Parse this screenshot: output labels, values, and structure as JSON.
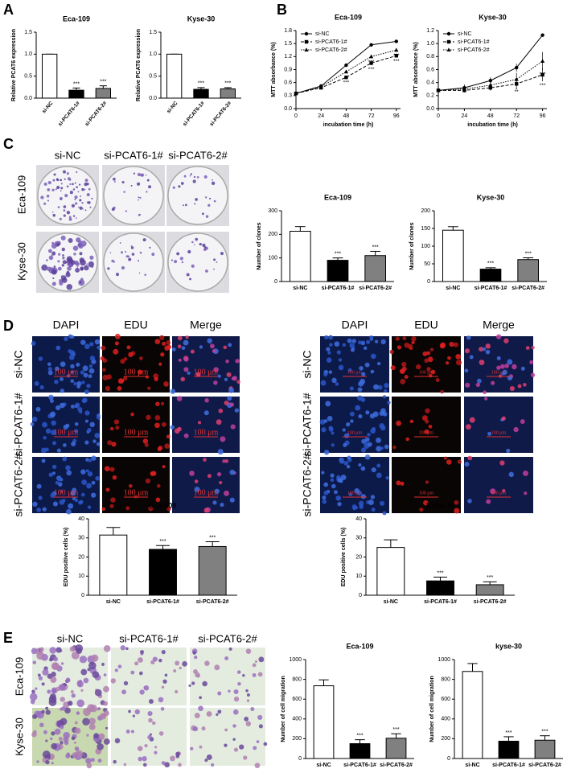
{
  "panel_labels": [
    "A",
    "B",
    "C",
    "D",
    "E"
  ],
  "colony_images": {
    "columns": [
      "si-NC",
      "si-PCAT6-1#",
      "si-PCAT6-2#"
    ],
    "rows": [
      "Eca-109",
      "Kyse-30"
    ]
  },
  "edu_images": {
    "columns": [
      "DAPI",
      "EDU",
      "Merge"
    ],
    "rows": [
      "si-NC",
      "si-PCAT6-1#",
      "si-PCAT6-2#"
    ],
    "scale_label": "100 μm"
  },
  "migration_images": {
    "columns": [
      "si-NC",
      "si-PCAT6-1#",
      "si-PCAT6-2#"
    ],
    "rows": [
      "Eca-109",
      "Kyse-30"
    ]
  },
  "chart_data": [
    {
      "type": "bar",
      "title": "Eca-109",
      "ylabel": "Relative PCAT6 expression",
      "categories": [
        "si-NC",
        "si-PCAT6-1#",
        "si-PCAT6-2#"
      ],
      "values": [
        1.0,
        0.18,
        0.22
      ],
      "errors": [
        0,
        0.05,
        0.06
      ],
      "annotations": [
        null,
        "***",
        "***"
      ],
      "colors": [
        "#ffffff",
        "#000000",
        "#808080"
      ],
      "ylim": [
        0,
        1.5
      ],
      "yticks": [
        {
          "value": 0,
          "label": "0.0"
        },
        0.5,
        {
          "value": 1,
          "label": "1.0"
        },
        1.5
      ],
      "rotated_xticks": true
    },
    {
      "type": "bar",
      "title": "Kyse-30",
      "ylabel": "Relative PCAT6 expression",
      "categories": [
        "si-NC",
        "si-PCAT6-1#",
        "si-PCAT6-2#"
      ],
      "values": [
        1.0,
        0.2,
        0.21
      ],
      "errors": [
        0,
        0.04,
        0.03
      ],
      "annotations": [
        null,
        "***",
        "***"
      ],
      "colors": [
        "#ffffff",
        "#000000",
        "#808080"
      ],
      "ylim": [
        0,
        1.5
      ],
      "yticks": [
        {
          "value": 0,
          "label": "0.0"
        },
        0.5,
        {
          "value": 1,
          "label": "1.0"
        },
        1.5
      ],
      "rotated_xticks": true
    },
    {
      "type": "line",
      "title": "Eca-109",
      "xlabel": "incubation time  (h)",
      "ylabel": "MTT absorbance (%)",
      "x": [
        0,
        24,
        48,
        72,
        96
      ],
      "xlim": [
        0,
        100
      ],
      "xticks": [
        0,
        24,
        48,
        72,
        96
      ],
      "ylim": [
        0,
        1.8
      ],
      "yticks": [
        {
          "value": 0,
          "label": "0.0"
        },
        0.3,
        0.6,
        0.9,
        1.2,
        1.5,
        1.8
      ],
      "legend": "upper left",
      "series": [
        {
          "name": "si-NC",
          "color": "#000000",
          "marker": "circle",
          "dash": "solid",
          "values": [
            0.35,
            0.52,
            1.0,
            1.47,
            1.55
          ],
          "errors": [
            0.02,
            0.02,
            0.03,
            0.03,
            0.02
          ],
          "annotations": [
            null,
            null,
            null,
            null,
            null
          ]
        },
        {
          "name": "si-PCAT6-1#",
          "color": "#000000",
          "marker": "square",
          "dash": "dashed",
          "values": [
            0.35,
            0.48,
            0.72,
            1.05,
            1.22
          ],
          "errors": [
            0.02,
            0.02,
            0.03,
            0.05,
            0.04
          ],
          "annotations": [
            null,
            null,
            "***",
            "***",
            "***"
          ]
        },
        {
          "name": "si-PCAT6-2#",
          "color": "#000000",
          "marker": "triangle",
          "dash": "dotted",
          "values": [
            0.35,
            0.5,
            0.85,
            1.2,
            1.35
          ],
          "errors": [
            0.02,
            0.02,
            0.03,
            0.04,
            0.04
          ],
          "annotations": [
            null,
            null,
            null,
            "***",
            "***"
          ]
        }
      ]
    },
    {
      "type": "line",
      "title": "Kyse-30",
      "xlabel": "incubation time  (h)",
      "ylabel": "MTT absorbance (%)",
      "x": [
        0,
        24,
        48,
        72,
        96
      ],
      "xlim": [
        0,
        100
      ],
      "xticks": [
        0,
        24,
        48,
        72,
        96
      ],
      "ylim": [
        0,
        1.2
      ],
      "yticks": [
        {
          "value": 0,
          "label": "0.0"
        },
        0.2,
        0.4,
        0.6,
        0.8,
        {
          "value": 1,
          "label": "1.0"
        },
        1.2
      ],
      "legend": "upper left",
      "series": [
        {
          "name": "si-NC",
          "color": "#000000",
          "marker": "circle",
          "dash": "solid",
          "values": [
            0.28,
            0.32,
            0.43,
            0.63,
            1.13
          ],
          "errors": [
            0.03,
            0.05,
            0.05,
            0.06,
            0.02
          ],
          "annotations": [
            null,
            null,
            null,
            null,
            null
          ]
        },
        {
          "name": "si-PCAT6-1#",
          "color": "#000000",
          "marker": "square",
          "dash": "dashed",
          "values": [
            0.28,
            0.28,
            0.32,
            0.38,
            0.52
          ],
          "errors": [
            0.02,
            0.03,
            0.04,
            0.06,
            0.1
          ],
          "annotations": [
            null,
            null,
            null,
            "**",
            "***"
          ]
        },
        {
          "name": "si-PCAT6-2#",
          "color": "#000000",
          "marker": "triangle",
          "dash": "dotted",
          "values": [
            0.28,
            0.3,
            0.36,
            0.45,
            0.73
          ],
          "errors": [
            0.02,
            0.05,
            0.08,
            0.1,
            0.14
          ],
          "annotations": [
            null,
            null,
            null,
            "*",
            "***"
          ]
        }
      ]
    },
    {
      "type": "bar",
      "title": "Eca-109",
      "ylabel": "Number of clones",
      "categories": [
        "si-NC",
        "si-PCAT6-1#",
        "si-PCAT6-2#"
      ],
      "values": [
        213,
        90,
        110
      ],
      "errors": [
        20,
        10,
        18
      ],
      "annotations": [
        null,
        "***",
        "***"
      ],
      "colors": [
        "#ffffff",
        "#000000",
        "#808080"
      ],
      "ylim": [
        0,
        300
      ],
      "yticks": [
        0,
        100,
        200,
        300
      ]
    },
    {
      "type": "bar",
      "title": "Kyse-30",
      "ylabel": "Number of clones",
      "categories": [
        "si-NC",
        "si-PCAT6-1#",
        "si-PCAT6-2#"
      ],
      "values": [
        145,
        35,
        62
      ],
      "errors": [
        10,
        4,
        5
      ],
      "annotations": [
        null,
        "***",
        "***"
      ],
      "colors": [
        "#ffffff",
        "#000000",
        "#808080"
      ],
      "ylim": [
        0,
        200
      ],
      "yticks": [
        0,
        50,
        100,
        150,
        200
      ]
    },
    {
      "type": "bar",
      "title": "Eca-109",
      "ylabel": "EDU positive cells (%)",
      "categories": [
        "si-NC",
        "si-PCAT6-1#",
        "si-PCAT6-2#"
      ],
      "values": [
        31.5,
        24,
        25.5
      ],
      "errors": [
        4,
        2,
        2.5
      ],
      "annotations": [
        null,
        "***",
        "***"
      ],
      "colors": [
        "#ffffff",
        "#000000",
        "#808080"
      ],
      "ylim": [
        0,
        40
      ],
      "yticks": [
        0,
        10,
        20,
        30,
        40
      ]
    },
    {
      "type": "bar",
      "title": "Kyse-30",
      "ylabel": "EDU positive cells (%)",
      "categories": [
        "si-NC",
        "si-PCAT6-1#",
        "si-PCAT6-2#"
      ],
      "values": [
        25,
        7.5,
        5.5
      ],
      "errors": [
        4,
        2,
        1.5
      ],
      "annotations": [
        null,
        "***",
        "***"
      ],
      "colors": [
        "#ffffff",
        "#000000",
        "#808080"
      ],
      "ylim": [
        0,
        40
      ],
      "yticks": [
        0,
        10,
        20,
        30,
        40
      ]
    },
    {
      "type": "bar",
      "title": "Eca-109",
      "ylabel": "Number of cell migration",
      "categories": [
        "si-NC",
        "si-PCAT6-1#",
        "si-PCAT6-2#"
      ],
      "values": [
        735,
        150,
        205
      ],
      "errors": [
        60,
        40,
        45
      ],
      "annotations": [
        null,
        "***",
        "***"
      ],
      "colors": [
        "#ffffff",
        "#000000",
        "#808080"
      ],
      "ylim": [
        0,
        1000
      ],
      "yticks": [
        0,
        200,
        400,
        600,
        800,
        1000
      ]
    },
    {
      "type": "bar",
      "title": "kyse-30",
      "ylabel": "Number of cell migration",
      "categories": [
        "si-NC",
        "si-PCAT6-1#",
        "si-PCAT6-2#"
      ],
      "values": [
        880,
        175,
        185
      ],
      "errors": [
        80,
        45,
        45
      ],
      "annotations": [
        null,
        "***",
        "***"
      ],
      "colors": [
        "#ffffff",
        "#000000",
        "#808080"
      ],
      "ylim": [
        0,
        1000
      ],
      "yticks": [
        0,
        200,
        400,
        600,
        800,
        1000
      ]
    }
  ]
}
